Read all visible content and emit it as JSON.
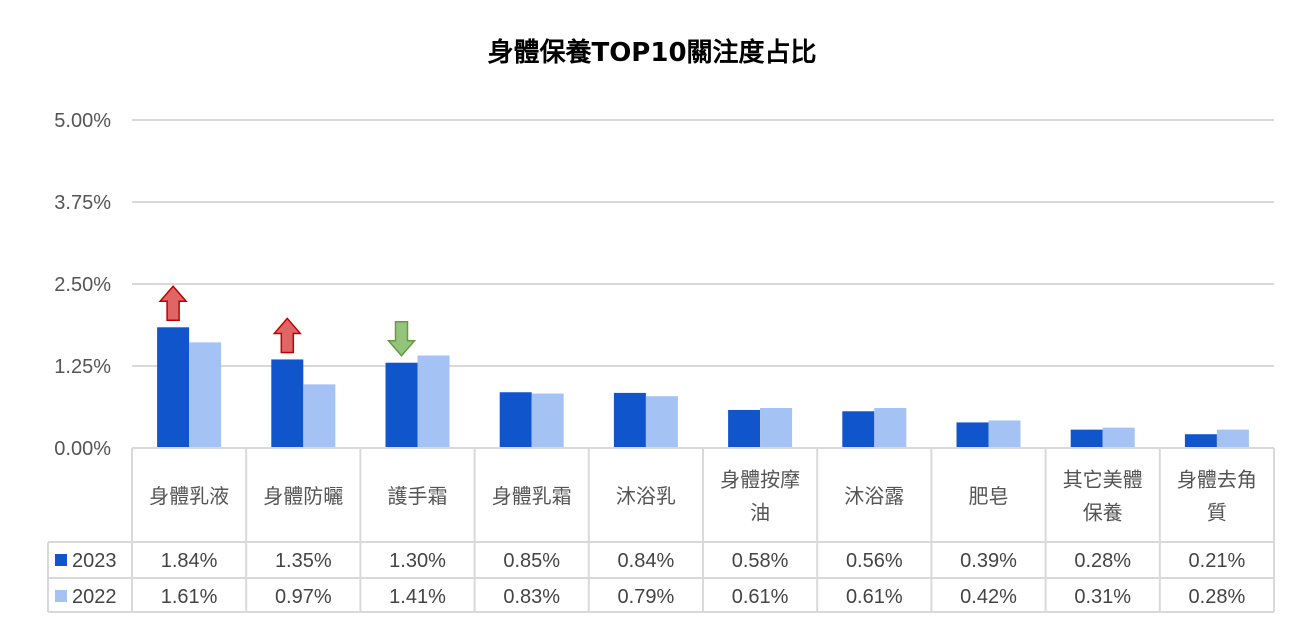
{
  "chart_data": {
    "type": "bar",
    "title": "身體保養TOP10關注度占比",
    "categories": [
      [
        "身體乳液"
      ],
      [
        "身體防曬"
      ],
      [
        "護手霜"
      ],
      [
        "身體乳霜"
      ],
      [
        "沐浴乳"
      ],
      [
        "身體按摩",
        "油"
      ],
      [
        "沐浴露"
      ],
      [
        "肥皂"
      ],
      [
        "其它美體",
        "保養"
      ],
      [
        "身體去角",
        "質"
      ]
    ],
    "series": [
      {
        "name": "2023",
        "color": "#1155CC",
        "values": [
          1.84,
          1.35,
          1.3,
          0.85,
          0.84,
          0.58,
          0.56,
          0.39,
          0.28,
          0.21
        ],
        "labels": [
          "1.84%",
          "1.35%",
          "1.30%",
          "0.85%",
          "0.84%",
          "0.58%",
          "0.56%",
          "0.39%",
          "0.28%",
          "0.21%"
        ]
      },
      {
        "name": "2022",
        "color": "#A4C2F4",
        "values": [
          1.61,
          0.97,
          1.41,
          0.83,
          0.79,
          0.61,
          0.61,
          0.42,
          0.31,
          0.28
        ],
        "labels": [
          "1.61%",
          "0.97%",
          "1.41%",
          "0.83%",
          "0.79%",
          "0.61%",
          "0.61%",
          "0.42%",
          "0.31%",
          "0.28%"
        ]
      }
    ],
    "yticks": [
      "0.00%",
      "1.25%",
      "2.50%",
      "3.75%",
      "5.00%"
    ],
    "ylim": [
      0,
      5
    ],
    "grid": true,
    "legend": "data table",
    "annotations": [
      {
        "category_index": 0,
        "type": "arrow-up",
        "color": "#E06666"
      },
      {
        "category_index": 1,
        "type": "arrow-up",
        "color": "#E06666"
      },
      {
        "category_index": 2,
        "type": "arrow-down",
        "color": "#93C47D"
      }
    ]
  }
}
